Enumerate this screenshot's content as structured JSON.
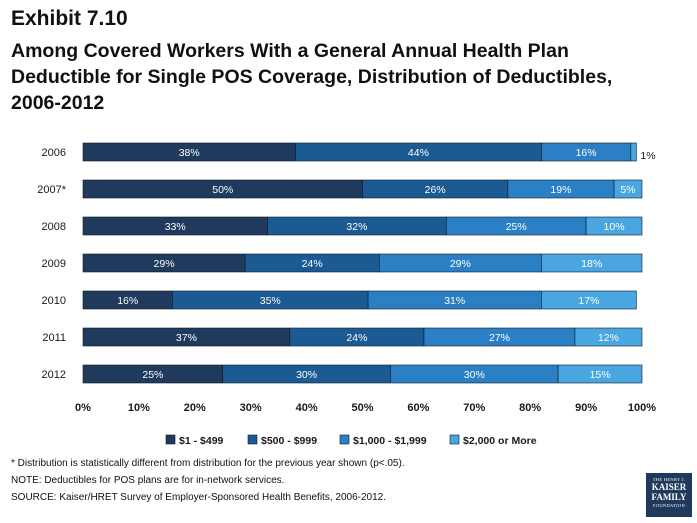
{
  "exhibit": "Exhibit 7.10",
  "title_lines": [
    "Among Covered Workers With a General Annual Health Plan",
    "Deductible for Single POS Coverage, Distribution of Deductibles,",
    "2006-2012"
  ],
  "chart_data": {
    "type": "bar",
    "orientation": "horizontal",
    "stacked": true,
    "categories": [
      "2006",
      "2007*",
      "2008",
      "2009",
      "2010",
      "2011",
      "2012"
    ],
    "series": [
      {
        "name": "$1 - $499",
        "color": "#1f3a5c",
        "values": [
          38,
          50,
          33,
          29,
          16,
          37,
          25
        ],
        "labels": [
          "38%",
          "50%",
          "33%",
          "29%",
          "16%",
          "37%",
          "25%"
        ]
      },
      {
        "name": "$500 - $999",
        "color": "#1c5a94",
        "values": [
          44,
          26,
          32,
          24,
          35,
          24,
          30
        ],
        "labels": [
          "44%",
          "26%",
          "32%",
          "24%",
          "35%",
          "24%",
          "30%"
        ]
      },
      {
        "name": "$1,000 - $1,999",
        "color": "#2b7fc4",
        "values": [
          16,
          19,
          25,
          29,
          31,
          27,
          30
        ],
        "labels": [
          "16%",
          "19%",
          "25%",
          "29%",
          "31%",
          "27%",
          "30%"
        ]
      },
      {
        "name": "$2,000 or More",
        "color": "#4aa6e1",
        "values": [
          1,
          5,
          10,
          18,
          17,
          12,
          15
        ],
        "labels": [
          "1%",
          "5%",
          "10%",
          "18%",
          "17%",
          "12%",
          "15%"
        ]
      }
    ],
    "xlim": [
      0,
      100
    ],
    "xticks": [
      "0%",
      "10%",
      "20%",
      "30%",
      "40%",
      "50%",
      "60%",
      "70%",
      "80%",
      "90%",
      "100%"
    ],
    "legend_position": "bottom",
    "label_text_color": "#ffffff",
    "tick_text_color": "#1a1a1a"
  },
  "footnotes": [
    "* Distribution is statistically different from distribution for the previous year shown (p<.05).",
    "NOTE: Deductibles for POS plans are for in-network services.",
    "SOURCE: Kaiser/HRET Survey of Employer-Sponsored Health Benefits, 2006-2012."
  ],
  "logo": {
    "line1": "THE HENRY J.",
    "line2": "KAISER",
    "line3": "FAMILY",
    "line4": "FOUNDATION"
  }
}
